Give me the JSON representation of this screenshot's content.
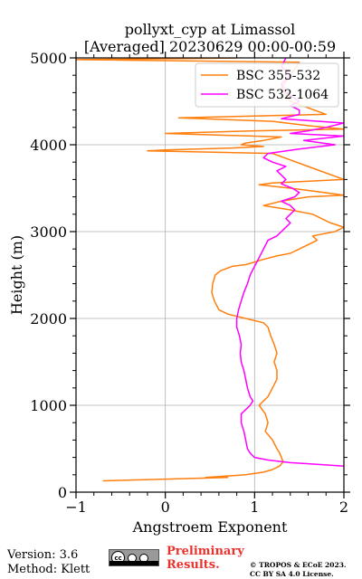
{
  "chart_data": {
    "type": "line",
    "title_line1": "pollyxt_cyp at Limassol",
    "title_line2": "[Averaged] 20230629 00:00-00:59",
    "xlabel": "Angstroem Exponent",
    "ylabel": "Height (m)",
    "xlim": [
      -1,
      2
    ],
    "ylim": [
      0,
      5000
    ],
    "xticks": [
      -1,
      0,
      1,
      2
    ],
    "yticks": [
      0,
      1000,
      2000,
      3000,
      4000,
      5000
    ],
    "grid": true,
    "legend_position": "top-right",
    "series": [
      {
        "name": "BSC 355-532",
        "color": "#ff7f0e",
        "points": [
          [
            -0.7,
            130
          ],
          [
            0.0,
            150
          ],
          [
            0.7,
            170
          ],
          [
            0.45,
            170
          ],
          [
            0.9,
            200
          ],
          [
            1.1,
            230
          ],
          [
            1.2,
            260
          ],
          [
            1.28,
            300
          ],
          [
            1.32,
            350
          ],
          [
            1.3,
            400
          ],
          [
            1.28,
            450
          ],
          [
            1.25,
            500
          ],
          [
            1.2,
            600
          ],
          [
            1.12,
            700
          ],
          [
            1.15,
            800
          ],
          [
            1.12,
            900
          ],
          [
            1.05,
            1000
          ],
          [
            1.1,
            1050
          ],
          [
            1.15,
            1100
          ],
          [
            1.2,
            1200
          ],
          [
            1.25,
            1300
          ],
          [
            1.25,
            1400
          ],
          [
            1.22,
            1500
          ],
          [
            1.25,
            1600
          ],
          [
            1.22,
            1700
          ],
          [
            1.18,
            1800
          ],
          [
            1.15,
            1900
          ],
          [
            1.1,
            1950
          ],
          [
            0.9,
            2000
          ],
          [
            0.7,
            2050
          ],
          [
            0.6,
            2100
          ],
          [
            0.55,
            2200
          ],
          [
            0.52,
            2300
          ],
          [
            0.53,
            2400
          ],
          [
            0.56,
            2500
          ],
          [
            0.62,
            2550
          ],
          [
            0.75,
            2600
          ],
          [
            0.9,
            2620
          ],
          [
            1.0,
            2650
          ],
          [
            1.1,
            2680
          ],
          [
            1.25,
            2720
          ],
          [
            1.4,
            2750
          ],
          [
            1.5,
            2800
          ],
          [
            1.6,
            2850
          ],
          [
            1.7,
            2900
          ],
          [
            1.65,
            2950
          ],
          [
            1.9,
            3000
          ],
          [
            2.0,
            3050
          ],
          [
            1.85,
            3100
          ],
          [
            1.65,
            3200
          ],
          [
            1.4,
            3250
          ],
          [
            1.1,
            3300
          ],
          [
            1.3,
            3350
          ],
          [
            1.6,
            3400
          ],
          [
            2.0,
            3420
          ],
          [
            1.7,
            3460
          ],
          [
            1.4,
            3500
          ],
          [
            1.05,
            3540
          ],
          [
            1.2,
            3560
          ],
          [
            2.0,
            3600
          ],
          [
            1.6,
            3750
          ],
          [
            1.2,
            3900
          ],
          [
            -0.2,
            3930
          ],
          [
            0.0,
            3940
          ],
          [
            0.7,
            3960
          ],
          [
            1.1,
            3980
          ],
          [
            0.85,
            4000
          ],
          [
            0.9,
            4020
          ],
          [
            1.1,
            4050
          ],
          [
            1.3,
            4090
          ],
          [
            0.0,
            4130
          ],
          [
            1.0,
            4160
          ],
          [
            2.0,
            4180
          ],
          [
            1.6,
            4220
          ],
          [
            1.2,
            4270
          ],
          [
            0.15,
            4310
          ],
          [
            1.0,
            4330
          ],
          [
            1.8,
            4350
          ],
          [
            1.4,
            4500
          ],
          [
            1.3,
            4650
          ],
          [
            1.4,
            4800
          ],
          [
            1.5,
            4950
          ],
          [
            -1.0,
            4980
          ],
          [
            0.8,
            5000
          ]
        ]
      },
      {
        "name": "BSC 532-1064",
        "color": "#ff00ff",
        "points": [
          [
            2.0,
            300
          ],
          [
            1.7,
            320
          ],
          [
            1.4,
            340
          ],
          [
            1.15,
            370
          ],
          [
            1.0,
            400
          ],
          [
            0.95,
            450
          ],
          [
            0.92,
            500
          ],
          [
            0.9,
            600
          ],
          [
            0.88,
            700
          ],
          [
            0.85,
            800
          ],
          [
            0.85,
            900
          ],
          [
            0.95,
            1000
          ],
          [
            0.98,
            1050
          ],
          [
            0.95,
            1100
          ],
          [
            0.92,
            1200
          ],
          [
            0.9,
            1300
          ],
          [
            0.88,
            1400
          ],
          [
            0.85,
            1500
          ],
          [
            0.84,
            1600
          ],
          [
            0.85,
            1700
          ],
          [
            0.83,
            1800
          ],
          [
            0.8,
            1900
          ],
          [
            0.8,
            2000
          ],
          [
            0.82,
            2100
          ],
          [
            0.85,
            2200
          ],
          [
            0.88,
            2300
          ],
          [
            0.92,
            2400
          ],
          [
            0.95,
            2500
          ],
          [
            1.0,
            2600
          ],
          [
            1.05,
            2700
          ],
          [
            1.1,
            2800
          ],
          [
            1.15,
            2900
          ],
          [
            1.25,
            2950
          ],
          [
            1.3,
            3000
          ],
          [
            1.35,
            3050
          ],
          [
            1.4,
            3100
          ],
          [
            1.35,
            3150
          ],
          [
            1.4,
            3200
          ],
          [
            1.45,
            3250
          ],
          [
            1.4,
            3300
          ],
          [
            1.3,
            3350
          ],
          [
            1.45,
            3400
          ],
          [
            1.5,
            3450
          ],
          [
            1.42,
            3500
          ],
          [
            1.3,
            3550
          ],
          [
            1.35,
            3600
          ],
          [
            1.3,
            3650
          ],
          [
            1.25,
            3700
          ],
          [
            1.35,
            3750
          ],
          [
            1.2,
            3800
          ],
          [
            1.1,
            3850
          ],
          [
            1.15,
            3900
          ],
          [
            1.5,
            3950
          ],
          [
            1.9,
            4000
          ],
          [
            1.55,
            4050
          ],
          [
            2.0,
            4100
          ],
          [
            1.4,
            4130
          ],
          [
            1.6,
            4160
          ],
          [
            1.8,
            4200
          ],
          [
            2.0,
            4250
          ],
          [
            1.3,
            4300
          ],
          [
            1.5,
            4350
          ],
          [
            1.5,
            4400
          ],
          [
            1.4,
            4450
          ],
          [
            1.5,
            4500
          ],
          [
            1.35,
            4600
          ],
          [
            1.3,
            4700
          ],
          [
            1.4,
            4800
          ],
          [
            1.3,
            4900
          ],
          [
            1.35,
            5000
          ]
        ]
      }
    ]
  },
  "footer": {
    "version": "Version: 3.6",
    "method": "Method: Klett",
    "preliminary_line1": "Preliminary",
    "preliminary_line2": "Results.",
    "copyright_line1": "© TROPOS & ECoE 2023.",
    "copyright_line2": "CC BY SA 4.0 License."
  },
  "colors": {
    "preliminary": "#e8332f",
    "grid": "#b0b0b0"
  },
  "icons": [
    "cc-by-sa-license-icon"
  ]
}
